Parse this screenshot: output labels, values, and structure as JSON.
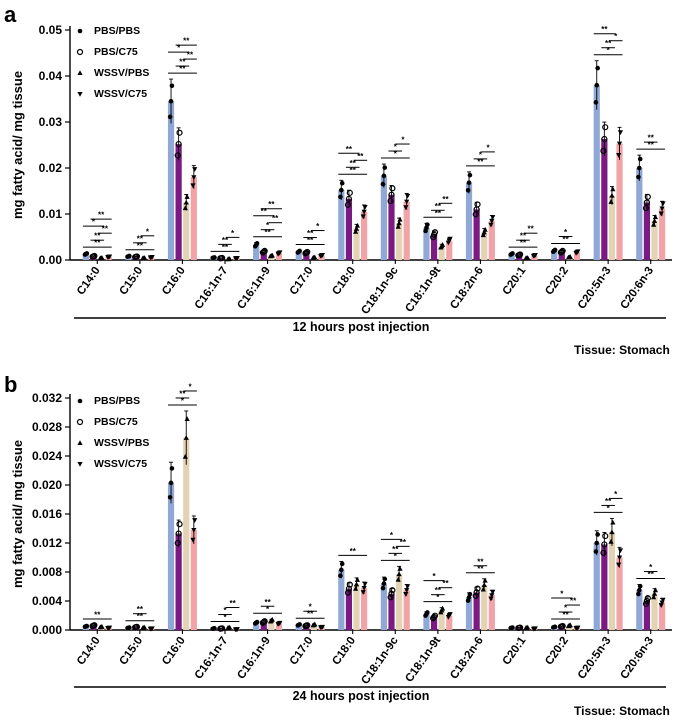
{
  "colors": {
    "PBS/PBS": "#8fa8d6",
    "PBS/C75": "#7b1a82",
    "WSSV/PBS": "#e3d3b3",
    "WSSV/C75": "#f2a3a7",
    "axis": "#000000"
  },
  "chart_data": [
    {
      "panel": "a",
      "type": "bar",
      "ylabel": "mg fatty acid/ mg tissue",
      "xlabel": "12 hours post injection",
      "tissue": "Tissue: Stomach",
      "ylim": [
        0,
        0.05
      ],
      "yticks": [
        "0.00",
        "0.01",
        "0.02",
        "0.03",
        "0.04",
        "0.05"
      ],
      "legend": [
        "PBS/PBS",
        "PBS/C75",
        "WSSV/PBS",
        "WSSV/C75"
      ],
      "categories": [
        "C14:0",
        "C15:0",
        "C16:0",
        "C16:1n-7",
        "C16:1n-9",
        "C17:0",
        "C18:0",
        "C18:1n-9c",
        "C18:1n-9t",
        "C18:2n-6",
        "C20:1",
        "C20:2",
        "C20:5n-3",
        "C20:6n-3"
      ],
      "series": [
        {
          "name": "PBS/PBS",
          "values": [
            0.0013,
            0.0008,
            0.0345,
            0.0005,
            0.0033,
            0.0018,
            0.0152,
            0.0183,
            0.007,
            0.0168,
            0.0013,
            0.002,
            0.038,
            0.02
          ]
        },
        {
          "name": "PBS/C75",
          "values": [
            0.0008,
            0.0007,
            0.0252,
            0.0004,
            0.0018,
            0.0016,
            0.0133,
            0.0142,
            0.0055,
            0.011,
            0.0011,
            0.0018,
            0.0263,
            0.0125
          ]
        },
        {
          "name": "WSSV/PBS",
          "values": [
            0.0004,
            0.0004,
            0.0125,
            0.0002,
            0.0009,
            0.0005,
            0.0068,
            0.008,
            0.003,
            0.006,
            0.0004,
            0.0006,
            0.014,
            0.0085
          ]
        },
        {
          "name": "WSSV/C75",
          "values": [
            0.0007,
            0.0006,
            0.018,
            0.0004,
            0.0015,
            0.001,
            0.0105,
            0.0127,
            0.0042,
            0.0085,
            0.001,
            0.0017,
            0.0253,
            0.0112
          ]
        }
      ],
      "significance": [
        [
          "**",
          "**",
          "**",
          "*",
          "**"
        ],
        [
          "**",
          "**",
          "*"
        ],
        [
          "**",
          "**",
          "**",
          "*",
          "**"
        ],
        [
          "**",
          "**",
          "*"
        ],
        [
          "**",
          "*",
          "**",
          "**",
          "**"
        ],
        [
          "**",
          "**",
          "*"
        ],
        [
          "**",
          "**",
          "**",
          "**"
        ],
        [
          "*",
          "*",
          "*"
        ],
        [
          "**",
          "**",
          "**"
        ],
        [
          "**",
          "*",
          "*"
        ],
        [
          "**",
          "**",
          "**"
        ],
        [
          "**",
          "*"
        ],
        [
          "*",
          "**",
          "*",
          "**"
        ],
        [
          "**",
          "**"
        ]
      ]
    },
    {
      "panel": "b",
      "type": "bar",
      "ylabel": "mg fatty acid/ mg tissue",
      "xlabel": "24 hours post injection",
      "tissue": "Tissue: Stomach",
      "ylim": [
        0,
        0.032
      ],
      "yticks": [
        "0.000",
        "0.004",
        "0.008",
        "0.012",
        "0.016",
        "0.020",
        "0.024",
        "0.028",
        "0.032"
      ],
      "legend": [
        "PBS/PBS",
        "PBS/C75",
        "WSSV/PBS",
        "WSSV/C75"
      ],
      "categories": [
        "C14:0",
        "C15:0",
        "C16:0",
        "C16:1n-7",
        "C16:1n-9",
        "C17:0",
        "C18:0",
        "C18:1n-9c",
        "C18:1n-9t",
        "C18:2n-6",
        "C20:1",
        "C20:2",
        "C20:5n-3",
        "C20:6n-3"
      ],
      "series": [
        {
          "name": "PBS/PBS",
          "values": [
            0.0005,
            0.0003,
            0.0203,
            0.0002,
            0.001,
            0.0007,
            0.0083,
            0.0064,
            0.0022,
            0.0045,
            0.0003,
            0.0004,
            0.012,
            0.0055
          ]
        },
        {
          "name": "PBS/C75",
          "values": [
            0.0006,
            0.0004,
            0.0133,
            0.0002,
            0.0011,
            0.0006,
            0.0057,
            0.005,
            0.0018,
            0.0052,
            0.0003,
            0.0005,
            0.0118,
            0.004
          ]
        },
        {
          "name": "WSSV/PBS",
          "values": [
            0.0004,
            0.0003,
            0.0265,
            0.0003,
            0.0013,
            0.0007,
            0.0063,
            0.0077,
            0.0027,
            0.0062,
            0.0003,
            0.0006,
            0.0135,
            0.005
          ]
        },
        {
          "name": "WSSV/C75",
          "values": [
            0.0003,
            0.0002,
            0.0138,
            0.0001,
            0.0009,
            0.0004,
            0.0058,
            0.0055,
            0.002,
            0.0048,
            0.0002,
            0.0003,
            0.01,
            0.0038
          ]
        }
      ],
      "significance": [
        [
          "**"
        ],
        [
          "**",
          "**"
        ],
        [
          "*",
          "**",
          "*"
        ],
        [
          "*",
          "*",
          "**"
        ],
        [
          "*",
          "**"
        ],
        [
          "**",
          "*"
        ],
        [
          "**"
        ],
        [
          "*",
          "**",
          "**",
          "*"
        ],
        [
          "*",
          "**",
          "**",
          "*"
        ],
        [
          "**",
          "**"
        ],
        [],
        [
          "**",
          "*",
          "**",
          "*"
        ],
        [
          "*",
          "**",
          "*"
        ],
        [
          "**",
          "*"
        ]
      ]
    }
  ]
}
